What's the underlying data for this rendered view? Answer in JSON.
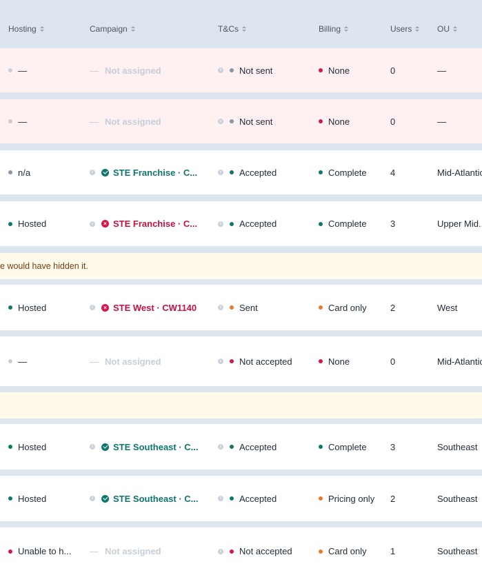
{
  "columns": {
    "hosting": "Hosting",
    "campaign": "Campaign",
    "tcs": "T&Cs",
    "billing": "Billing",
    "users": "Users",
    "ou": "OU"
  },
  "rows": [
    {
      "hosting": "—",
      "campaign": "Not assigned",
      "tcs": "Not sent",
      "billing": "None",
      "users": "0",
      "ou": "—"
    },
    {
      "hosting": "—",
      "campaign": "Not assigned",
      "tcs": "Not sent",
      "billing": "None",
      "users": "0",
      "ou": "—"
    },
    {
      "hosting": "n/a",
      "campaign": "STE Franchise · C...",
      "tcs": "Accepted",
      "billing": "Complete",
      "users": "4",
      "ou": "Mid-Atlantic"
    },
    {
      "hosting": "Hosted",
      "campaign": "STE Franchise · C...",
      "tcs": "Accepted",
      "billing": "Complete",
      "users": "3",
      "ou": "Upper Mid..."
    },
    {
      "hosting": "Hosted",
      "campaign": "STE West · CW1140",
      "tcs": "Sent",
      "billing": "Card only",
      "users": "2",
      "ou": "West"
    },
    {
      "hosting": "—",
      "campaign": "Not assigned",
      "tcs": "Not accepted",
      "billing": "None",
      "users": "0",
      "ou": "Mid-Atlantic"
    },
    {
      "hosting": "Hosted",
      "campaign": "STE Southeast · C...",
      "tcs": "Accepted",
      "billing": "Complete",
      "users": "3",
      "ou": "Southeast"
    },
    {
      "hosting": "Hosted",
      "campaign": "STE Southeast · C...",
      "tcs": "Accepted",
      "billing": "Pricing only",
      "users": "2",
      "ou": "Southeast"
    },
    {
      "hosting": "Unable to h...",
      "campaign": "Not assigned",
      "tcs": "Not accepted",
      "billing": "Card only",
      "users": "1",
      "ou": "Southeast"
    }
  ],
  "notes": [
    {
      "text": "e would have hidden it."
    },
    {
      "text": ""
    }
  ],
  "colors": {
    "green": "#0f766e",
    "red": "#d5174c",
    "orange": "#ea7a2b",
    "gray": "#8a96a6",
    "row_alert_bg": "#fff0f1",
    "note_bg": "#fffaea",
    "header_bg": "#dde5ee"
  }
}
